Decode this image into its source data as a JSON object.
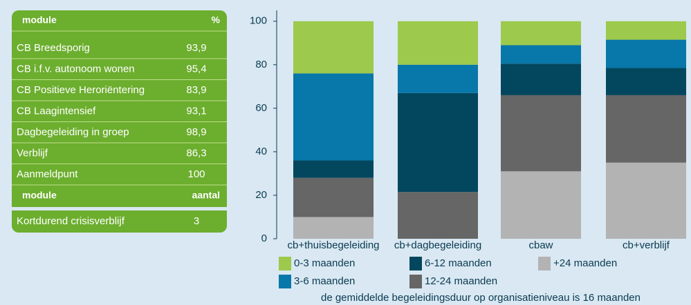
{
  "table": {
    "header": [
      "module",
      "%"
    ],
    "rows": [
      [
        "CB Breedsporig",
        "93,9"
      ],
      [
        "CB i.f.v. autonoom wonen",
        "95,4"
      ],
      [
        "CB Positieve Heroriëntering",
        "83,9"
      ],
      [
        "CB Laagintensief",
        "93,1"
      ],
      [
        "Dagbegeleiding in groep",
        "98,9"
      ],
      [
        "Verblijf",
        "86,3"
      ],
      [
        "Aanmeldpunt",
        "100"
      ]
    ],
    "header2": [
      "module",
      "aantal"
    ],
    "rows2": [
      [
        "Kortdurend crisisverblijf",
        "3"
      ]
    ]
  },
  "chart_data": {
    "type": "stacked_bar",
    "categories": [
      "cb+thuisbegeleiding",
      "cb+dagbegeleiding",
      "cbaw",
      "cb+verblijf"
    ],
    "series": [
      {
        "name": "0-3 maanden",
        "color": "#9dc94c",
        "values": [
          24,
          20,
          11,
          8.5
        ]
      },
      {
        "name": "3-6 maanden",
        "color": "#0877a9",
        "values": [
          40,
          13,
          8.5,
          13
        ]
      },
      {
        "name": "6-12 maanden",
        "color": "#03475e",
        "values": [
          8,
          45.5,
          14.5,
          12.5
        ]
      },
      {
        "name": "12-24 maanden",
        "color": "#666666",
        "values": [
          18,
          21.5,
          35,
          31
        ]
      },
      {
        "name": "+24 maanden",
        "color": "#b3b3b3",
        "values": [
          10,
          0,
          31,
          35
        ]
      }
    ],
    "ylim": [
      0,
      105
    ],
    "yticks": [
      0,
      20,
      40,
      60,
      80,
      100
    ],
    "note": "de gemiddelde begeleidingsduur op organisatieniveau is 16 maanden"
  }
}
